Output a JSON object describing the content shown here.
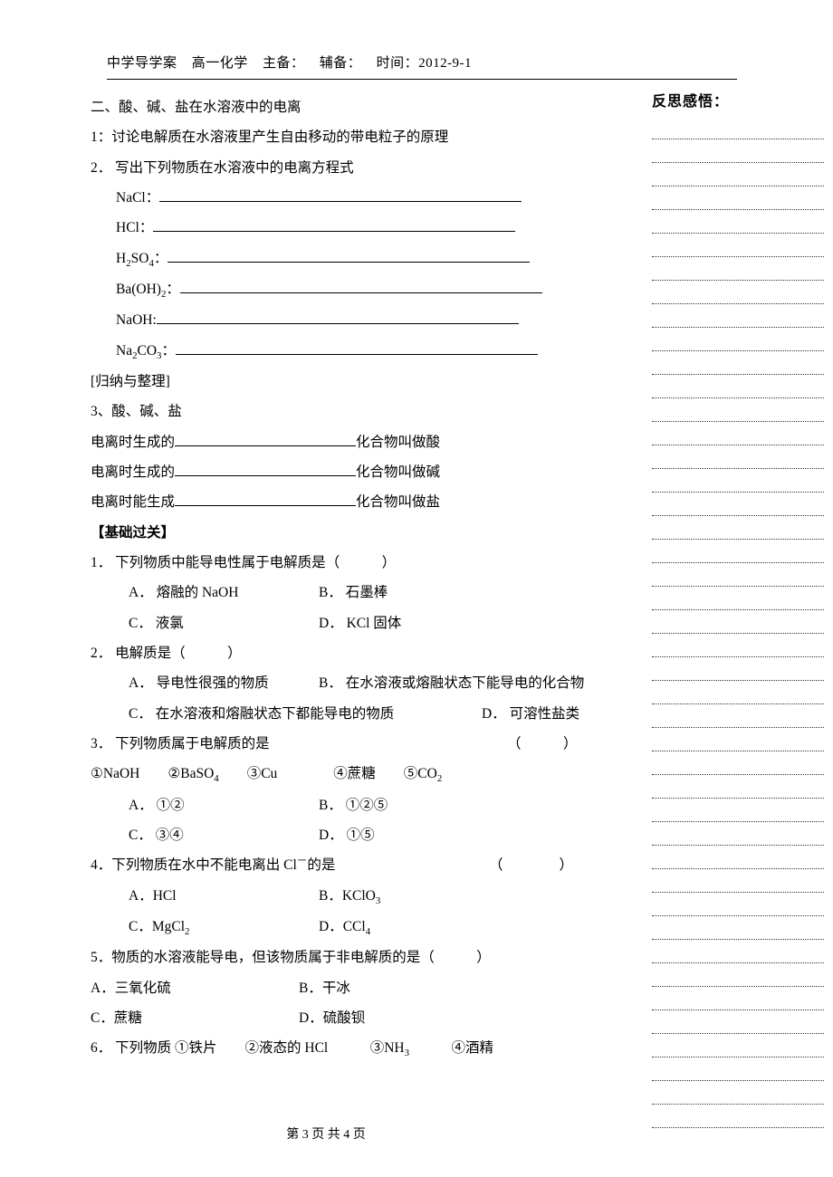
{
  "header": {
    "school": "中学导学案",
    "subject": "高一化学",
    "main_prep": "主备：",
    "aux_prep": "辅备：",
    "time": "时间：2012-9-1"
  },
  "sidebar": {
    "title": "反思感悟：",
    "line_count": 43
  },
  "section2": {
    "title": "二、酸、碱、盐在水溶液中的电离",
    "item1": "1：讨论电解质在水溶液里产生自由移动的带电粒子的原理",
    "item2": "2． 写出下列物质在水溶液中的电离方程式",
    "formulas": [
      {
        "label": "NaCl："
      },
      {
        "label": "HCl："
      },
      {
        "label": "H",
        "sub1": "2",
        "mid": "SO",
        "sub2": "4",
        "tail": "："
      },
      {
        "label": "Ba(OH)",
        "sub1": "2",
        "tail": "："
      },
      {
        "label": "NaOH:"
      },
      {
        "label": "Na",
        "sub1": "2",
        "mid": "CO",
        "sub2": "3",
        "tail": "："
      }
    ],
    "summary_header": "[归纳与整理]",
    "item3": "3、酸、碱、盐",
    "def_prefix_a": "电离时生成的",
    "def_prefix_b": "电离时能生成",
    "def_suffix_acid": "化合物叫做酸",
    "def_suffix_base": "化合物叫做碱",
    "def_suffix_salt": "化合物叫做盐",
    "blank_width_def": 200,
    "blank_width_formula": 400
  },
  "basics": {
    "title": "【基础过关】",
    "q1": {
      "stem": "1． 下列物质中能导电性属于电解质是（　　　）",
      "a": "A． 熔融的 NaOH",
      "b": "B． 石墨棒",
      "c": "C． 液氯",
      "d": "D． KCl 固体"
    },
    "q2": {
      "stem": "2． 电解质是（　　　）",
      "a": "A． 导电性很强的物质",
      "b": "B． 在水溶液或熔融状态下能导电的化合物",
      "c": "C． 在水溶液和熔融状态下都能导电的物质",
      "d": "D． 可溶性盐类"
    },
    "q3": {
      "stem_a": "3． 下列物质属于电解质的是",
      "stem_b": "（　　　）",
      "choices_line": "①NaOH　　②BaSO",
      "choices_sub": "4",
      "choices_rest": "　　③Cu　　　　④蔗糖　　⑤CO",
      "choices_sub2": "2",
      "a": "A． ①②",
      "b": "B． ①②⑤",
      "c": "C． ③④",
      "d": "D． ①⑤"
    },
    "q4": {
      "stem_a": "4．下列物质在水中不能电离出 Cl",
      "stem_sup": "－",
      "stem_b": "的是",
      "stem_c": "（　　　　）",
      "a": "A．HCl",
      "b_pre": "B．KClO",
      "b_sub": "3",
      "c_pre": "C．MgCl",
      "c_sub": "2",
      "d_pre": "D．CCl",
      "d_sub": "4"
    },
    "q5": {
      "stem": "5．物质的水溶液能导电，但该物质属于非电解质的是（　　　）",
      "a": "A．三氧化硫",
      "b": "B．干冰",
      "c": "C．蔗糖",
      "d": "D．硫酸钡"
    },
    "q6": {
      "stem_a": "6． 下列物质 ①铁片　　②液态的 HCl　　　③NH",
      "sub": "3",
      "stem_b": "　　　④酒精"
    }
  },
  "footer": "第 3 页 共 4 页",
  "layout": {
    "col1_width": 210,
    "col2_width": 200
  }
}
